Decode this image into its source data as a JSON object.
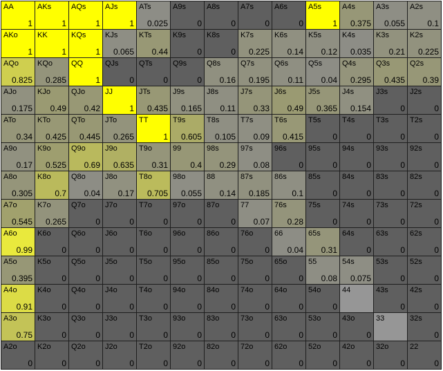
{
  "range_grid": {
    "colors": {
      "full": "#ffff00",
      "zero": "#5f5f5f",
      "mid": "#9a9a72",
      "grid_line": "#1e1e1e"
    },
    "rows": [
      [
        {
          "hand": "AA",
          "freq": "1"
        },
        {
          "hand": "AKs",
          "freq": "1"
        },
        {
          "hand": "AQs",
          "freq": "1"
        },
        {
          "hand": "AJs",
          "freq": "1"
        },
        {
          "hand": "ATs",
          "freq": "0.025"
        },
        {
          "hand": "A9s",
          "freq": "0"
        },
        {
          "hand": "A8s",
          "freq": "0"
        },
        {
          "hand": "A7s",
          "freq": "0"
        },
        {
          "hand": "A6s",
          "freq": "0"
        },
        {
          "hand": "A5s",
          "freq": "1"
        },
        {
          "hand": "A4s",
          "freq": "0.375"
        },
        {
          "hand": "A3s",
          "freq": "0.055"
        },
        {
          "hand": "A2s",
          "freq": "0.1"
        }
      ],
      [
        {
          "hand": "AKo",
          "freq": "1"
        },
        {
          "hand": "KK",
          "freq": "1"
        },
        {
          "hand": "KQs",
          "freq": "1"
        },
        {
          "hand": "KJs",
          "freq": "0.065"
        },
        {
          "hand": "KTs",
          "freq": "0.44"
        },
        {
          "hand": "K9s",
          "freq": "0"
        },
        {
          "hand": "K8s",
          "freq": "0"
        },
        {
          "hand": "K7s",
          "freq": "0.225"
        },
        {
          "hand": "K6s",
          "freq": "0.14"
        },
        {
          "hand": "K5s",
          "freq": "0.12"
        },
        {
          "hand": "K4s",
          "freq": "0.035"
        },
        {
          "hand": "K3s",
          "freq": "0.21"
        },
        {
          "hand": "K2s",
          "freq": "0.225"
        }
      ],
      [
        {
          "hand": "AQo",
          "freq": "0.825"
        },
        {
          "hand": "KQo",
          "freq": "0.285"
        },
        {
          "hand": "QQ",
          "freq": "1"
        },
        {
          "hand": "QJs",
          "freq": "0"
        },
        {
          "hand": "QTs",
          "freq": "0"
        },
        {
          "hand": "Q9s",
          "freq": "0"
        },
        {
          "hand": "Q8s",
          "freq": "0.16"
        },
        {
          "hand": "Q7s",
          "freq": "0.195"
        },
        {
          "hand": "Q6s",
          "freq": "0.11"
        },
        {
          "hand": "Q5s",
          "freq": "0.04"
        },
        {
          "hand": "Q4s",
          "freq": "0.295"
        },
        {
          "hand": "Q3s",
          "freq": "0.435"
        },
        {
          "hand": "Q2s",
          "freq": "0.39"
        }
      ],
      [
        {
          "hand": "AJo",
          "freq": "0.175"
        },
        {
          "hand": "KJo",
          "freq": "0.49"
        },
        {
          "hand": "QJo",
          "freq": "0.42"
        },
        {
          "hand": "JJ",
          "freq": "1"
        },
        {
          "hand": "JTs",
          "freq": "0.435"
        },
        {
          "hand": "J9s",
          "freq": "0.165"
        },
        {
          "hand": "J8s",
          "freq": "0.11"
        },
        {
          "hand": "J7s",
          "freq": "0.33"
        },
        {
          "hand": "J6s",
          "freq": "0.49"
        },
        {
          "hand": "J5s",
          "freq": "0.365"
        },
        {
          "hand": "J4s",
          "freq": "0.154"
        },
        {
          "hand": "J3s",
          "freq": "0"
        },
        {
          "hand": "J2s",
          "freq": "0"
        }
      ],
      [
        {
          "hand": "ATo",
          "freq": "0.34"
        },
        {
          "hand": "KTo",
          "freq": "0.425"
        },
        {
          "hand": "QTo",
          "freq": "0.445"
        },
        {
          "hand": "JTo",
          "freq": "0.265"
        },
        {
          "hand": "TT",
          "freq": "1"
        },
        {
          "hand": "T9s",
          "freq": "0.605"
        },
        {
          "hand": "T8s",
          "freq": "0.105"
        },
        {
          "hand": "T7s",
          "freq": "0.09"
        },
        {
          "hand": "T6s",
          "freq": "0.415"
        },
        {
          "hand": "T5s",
          "freq": "0"
        },
        {
          "hand": "T4s",
          "freq": "0"
        },
        {
          "hand": "T3s",
          "freq": "0"
        },
        {
          "hand": "T2s",
          "freq": "0"
        }
      ],
      [
        {
          "hand": "A9o",
          "freq": "0.17"
        },
        {
          "hand": "K9o",
          "freq": "0.525"
        },
        {
          "hand": "Q9o",
          "freq": "0.69"
        },
        {
          "hand": "J9o",
          "freq": "0.635"
        },
        {
          "hand": "T9o",
          "freq": "0.31"
        },
        {
          "hand": "99",
          "freq": "0.4"
        },
        {
          "hand": "98s",
          "freq": "0.29"
        },
        {
          "hand": "97s",
          "freq": "0.08"
        },
        {
          "hand": "96s",
          "freq": "0"
        },
        {
          "hand": "95s",
          "freq": "0"
        },
        {
          "hand": "94s",
          "freq": "0"
        },
        {
          "hand": "93s",
          "freq": "0"
        },
        {
          "hand": "92s",
          "freq": "0"
        }
      ],
      [
        {
          "hand": "A8o",
          "freq": "0.305"
        },
        {
          "hand": "K8o",
          "freq": "0.7"
        },
        {
          "hand": "Q8o",
          "freq": "0.04"
        },
        {
          "hand": "J8o",
          "freq": "0.17"
        },
        {
          "hand": "T8o",
          "freq": "0.705"
        },
        {
          "hand": "98o",
          "freq": "0.055"
        },
        {
          "hand": "88",
          "freq": "0.14"
        },
        {
          "hand": "87s",
          "freq": "0.185"
        },
        {
          "hand": "86s",
          "freq": "0.1"
        },
        {
          "hand": "85s",
          "freq": "0"
        },
        {
          "hand": "84s",
          "freq": "0"
        },
        {
          "hand": "83s",
          "freq": "0"
        },
        {
          "hand": "82s",
          "freq": "0"
        }
      ],
      [
        {
          "hand": "A7o",
          "freq": "0.545"
        },
        {
          "hand": "K7o",
          "freq": "0.265"
        },
        {
          "hand": "Q7o",
          "freq": "0"
        },
        {
          "hand": "J7o",
          "freq": "0"
        },
        {
          "hand": "T7o",
          "freq": "0"
        },
        {
          "hand": "97o",
          "freq": "0"
        },
        {
          "hand": "87o",
          "freq": "0"
        },
        {
          "hand": "77",
          "freq": "0.07"
        },
        {
          "hand": "76s",
          "freq": "0.28"
        },
        {
          "hand": "75s",
          "freq": "0"
        },
        {
          "hand": "74s",
          "freq": "0"
        },
        {
          "hand": "73s",
          "freq": "0"
        },
        {
          "hand": "72s",
          "freq": "0"
        }
      ],
      [
        {
          "hand": "A6o",
          "freq": "0.99"
        },
        {
          "hand": "K6o",
          "freq": "0"
        },
        {
          "hand": "Q6o",
          "freq": "0"
        },
        {
          "hand": "J6o",
          "freq": "0"
        },
        {
          "hand": "T6o",
          "freq": "0"
        },
        {
          "hand": "96o",
          "freq": "0"
        },
        {
          "hand": "86o",
          "freq": "0"
        },
        {
          "hand": "76o",
          "freq": "0"
        },
        {
          "hand": "66",
          "freq": "0.04"
        },
        {
          "hand": "65s",
          "freq": "0.31"
        },
        {
          "hand": "64s",
          "freq": "0"
        },
        {
          "hand": "63s",
          "freq": "0"
        },
        {
          "hand": "62s",
          "freq": "0"
        }
      ],
      [
        {
          "hand": "A5o",
          "freq": "0.395"
        },
        {
          "hand": "K5o",
          "freq": "0"
        },
        {
          "hand": "Q5o",
          "freq": "0"
        },
        {
          "hand": "J5o",
          "freq": "0"
        },
        {
          "hand": "T5o",
          "freq": "0"
        },
        {
          "hand": "95o",
          "freq": "0"
        },
        {
          "hand": "85o",
          "freq": "0"
        },
        {
          "hand": "75o",
          "freq": "0"
        },
        {
          "hand": "65o",
          "freq": "0"
        },
        {
          "hand": "55",
          "freq": "0.08"
        },
        {
          "hand": "54s",
          "freq": "0.075"
        },
        {
          "hand": "53s",
          "freq": "0"
        },
        {
          "hand": "52s",
          "freq": "0"
        }
      ],
      [
        {
          "hand": "A4o",
          "freq": "0.91"
        },
        {
          "hand": "K4o",
          "freq": "0"
        },
        {
          "hand": "Q4o",
          "freq": "0"
        },
        {
          "hand": "J4o",
          "freq": "0"
        },
        {
          "hand": "T4o",
          "freq": "0"
        },
        {
          "hand": "94o",
          "freq": "0"
        },
        {
          "hand": "84o",
          "freq": "0"
        },
        {
          "hand": "74o",
          "freq": "0"
        },
        {
          "hand": "64o",
          "freq": "0"
        },
        {
          "hand": "54o",
          "freq": "0"
        },
        {
          "hand": "44",
          "freq": ""
        },
        {
          "hand": "43s",
          "freq": "0"
        },
        {
          "hand": "42s",
          "freq": "0"
        }
      ],
      [
        {
          "hand": "A3o",
          "freq": "0.75"
        },
        {
          "hand": "K3o",
          "freq": "0"
        },
        {
          "hand": "Q3o",
          "freq": "0"
        },
        {
          "hand": "J3o",
          "freq": "0"
        },
        {
          "hand": "T3o",
          "freq": "0"
        },
        {
          "hand": "93o",
          "freq": "0"
        },
        {
          "hand": "83o",
          "freq": "0"
        },
        {
          "hand": "73o",
          "freq": "0"
        },
        {
          "hand": "63o",
          "freq": "0"
        },
        {
          "hand": "53o",
          "freq": "0"
        },
        {
          "hand": "43o",
          "freq": "0"
        },
        {
          "hand": "33",
          "freq": ""
        },
        {
          "hand": "32s",
          "freq": "0"
        }
      ],
      [
        {
          "hand": "A2o",
          "freq": "0"
        },
        {
          "hand": "K2o",
          "freq": "0"
        },
        {
          "hand": "Q2o",
          "freq": "0"
        },
        {
          "hand": "J2o",
          "freq": "0"
        },
        {
          "hand": "T2o",
          "freq": "0"
        },
        {
          "hand": "92o",
          "freq": "0"
        },
        {
          "hand": "82o",
          "freq": "0"
        },
        {
          "hand": "72o",
          "freq": "0"
        },
        {
          "hand": "62o",
          "freq": "0"
        },
        {
          "hand": "52o",
          "freq": "0"
        },
        {
          "hand": "42o",
          "freq": "0"
        },
        {
          "hand": "32o",
          "freq": "0"
        },
        {
          "hand": "22",
          "freq": "0"
        }
      ]
    ]
  }
}
